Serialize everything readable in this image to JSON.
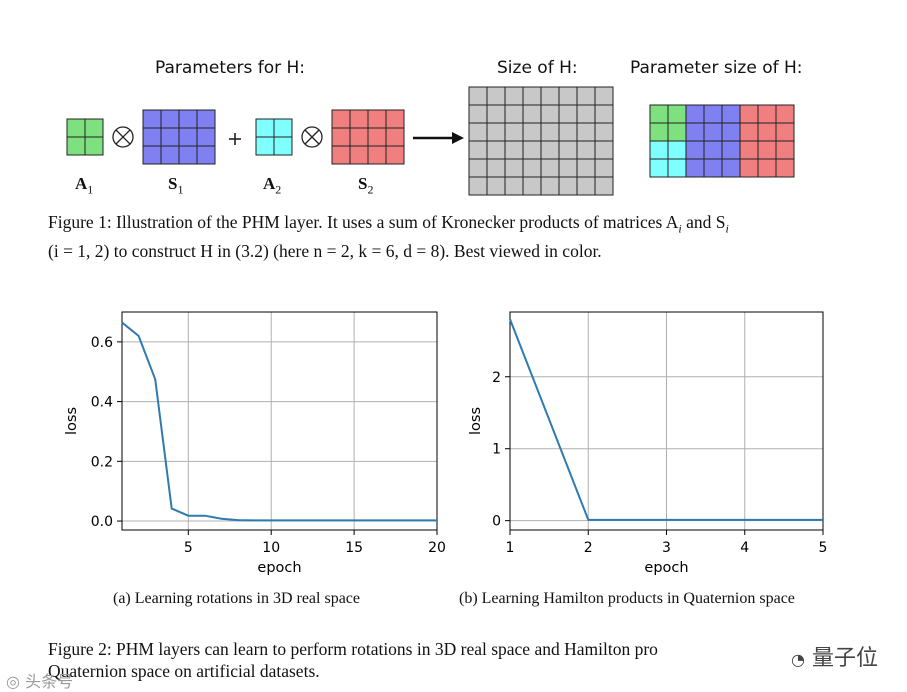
{
  "figure1": {
    "heading_params": "Parameters for H:",
    "heading_size": "Size of H:",
    "heading_param_size": "Parameter size of H:",
    "op_kron": "⊗",
    "op_plus": "+",
    "labels": {
      "a1": "A",
      "a1_sub": "1",
      "s1": "S",
      "s1_sub": "1",
      "a2": "A",
      "a2_sub": "2",
      "s2": "S",
      "s2_sub": "2"
    },
    "colors": {
      "green": "#7fe07f",
      "blue": "#8080f0",
      "cyan": "#80ffff",
      "red": "#f08080",
      "gray": "#c8c8c8"
    },
    "caption_line1": "Figure 1: Illustration of the PHM layer. It uses a sum of Kronecker products of matrices A",
    "caption_line1_sub_i": "i",
    "caption_line1_and": " and S",
    "caption_line1_sub_i2": "i",
    "caption_line2": "(i = 1, 2) to construct H in (3.2) (here n = 2, k = 6, d = 8). Best viewed in color."
  },
  "figure2": {
    "subcaption_a": "(a)  Learning rotations in 3D real space",
    "subcaption_b": "(b)  Learning Hamilton products in Quaternion space",
    "caption_line1": "Figure 2:  PHM layers can learn to perform rotations in 3D real space and Hamilton pro",
    "caption_line2": "Quaternion space on artificial datasets."
  },
  "watermark": {
    "right_text": "量子位",
    "left_text": "头条号"
  },
  "chart_data": [
    {
      "type": "line",
      "title": "",
      "xlabel": "epoch",
      "ylabel": "loss",
      "xlim": [
        1,
        20
      ],
      "ylim": [
        -0.03,
        0.7
      ],
      "xticks": [
        5,
        10,
        15,
        20
      ],
      "yticks": [
        0.0,
        0.2,
        0.4,
        0.6
      ],
      "xtick_labels": [
        "5",
        "10",
        "15",
        "20"
      ],
      "ytick_labels": [
        "0.0",
        "0.2",
        "0.4",
        "0.6"
      ],
      "grid": true,
      "line_color": "#2f7ab0",
      "x": [
        1,
        2,
        3,
        4,
        5,
        6,
        7,
        8,
        9,
        10,
        11,
        12,
        13,
        14,
        15,
        16,
        17,
        18,
        19,
        20
      ],
      "y": [
        0.665,
        0.62,
        0.475,
        0.042,
        0.018,
        0.018,
        0.008,
        0.003,
        0.002,
        0.002,
        0.002,
        0.002,
        0.002,
        0.002,
        0.002,
        0.002,
        0.002,
        0.002,
        0.002,
        0.002
      ]
    },
    {
      "type": "line",
      "title": "",
      "xlabel": "epoch",
      "ylabel": "loss",
      "xlim": [
        1,
        5
      ],
      "ylim": [
        -0.13,
        2.9
      ],
      "xticks": [
        1,
        2,
        3,
        4,
        5
      ],
      "yticks": [
        0,
        1,
        2
      ],
      "xtick_labels": [
        "1",
        "2",
        "3",
        "4",
        "5"
      ],
      "ytick_labels": [
        "0",
        "1",
        "2"
      ],
      "grid": true,
      "line_color": "#2f7ab0",
      "x": [
        1,
        2,
        3,
        4,
        5
      ],
      "y": [
        2.8,
        0.01,
        0.01,
        0.01,
        0.01
      ]
    }
  ]
}
